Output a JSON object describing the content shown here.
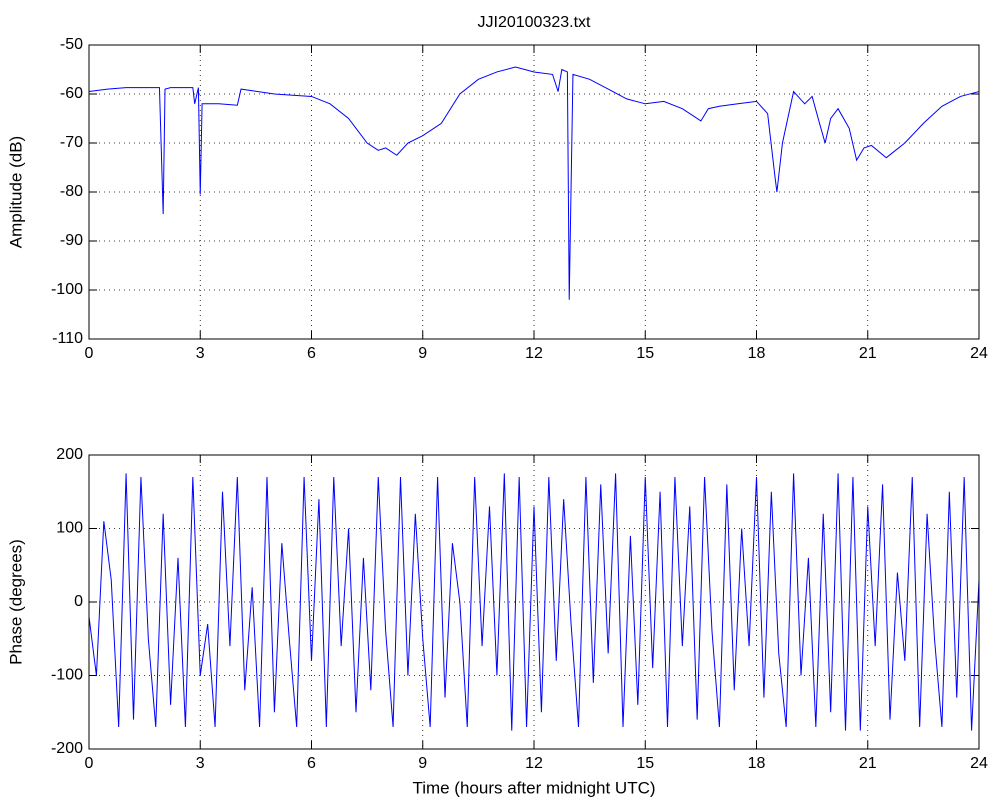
{
  "chart_data": [
    {
      "type": "line",
      "title": "JJI20100323.txt",
      "ylabel": "Amplitude (dB)",
      "xlim": [
        0,
        24
      ],
      "xticks": [
        0,
        3,
        6,
        9,
        12,
        15,
        18,
        21,
        24
      ],
      "ylim": [
        -110,
        -50
      ],
      "yticks": [
        -110,
        -100,
        -90,
        -80,
        -70,
        -60,
        -50
      ],
      "grid": true,
      "series": [
        {
          "color": "#0000ff",
          "x": [
            0,
            0.5,
            1,
            1.5,
            1.9,
            2.0,
            2.05,
            2.2,
            2.8,
            2.85,
            2.95,
            3.0,
            3.05,
            3.5,
            4.0,
            4.1,
            5,
            6,
            6.5,
            7,
            7.5,
            7.8,
            8.0,
            8.3,
            8.6,
            9,
            9.5,
            10,
            10.5,
            11,
            11.5,
            12,
            12.5,
            12.65,
            12.75,
            12.9,
            12.95,
            13.0,
            13.05,
            13.5,
            14,
            14.5,
            15,
            15.5,
            16,
            16.5,
            16.7,
            17,
            17.5,
            18,
            18.3,
            18.5,
            18.55,
            18.7,
            19,
            19.3,
            19.5,
            19.7,
            19.85,
            20,
            20.2,
            20.5,
            20.7,
            20.9,
            21.1,
            21.5,
            22,
            22.5,
            23,
            23.5,
            24
          ],
          "values": [
            -59.5,
            -59,
            -58.7,
            -58.7,
            -58.7,
            -84.5,
            -59,
            -58.7,
            -58.7,
            -62,
            -58.7,
            -80.5,
            -62,
            -62,
            -62.3,
            -59,
            -60,
            -60.5,
            -62,
            -65,
            -70,
            -71.5,
            -71,
            -72.5,
            -70,
            -68.5,
            -66,
            -60,
            -57,
            -55.5,
            -54.5,
            -55.5,
            -56,
            -59.5,
            -55,
            -55.5,
            -102,
            -79,
            -56,
            -57,
            -59,
            -61,
            -62,
            -61.5,
            -63,
            -65.5,
            -63,
            -62.5,
            -62,
            -61.5,
            -64,
            -77,
            -80,
            -70,
            -59.5,
            -62,
            -60.5,
            -66,
            -70,
            -65,
            -63,
            -67,
            -73.5,
            -71,
            -70.5,
            -73,
            -70,
            -66,
            -62.5,
            -60.5,
            -59.5
          ]
        }
      ]
    },
    {
      "type": "line",
      "xlabel": "Time (hours after midnight UTC)",
      "ylabel": "Phase (degrees)",
      "xlim": [
        0,
        24
      ],
      "xticks": [
        0,
        3,
        6,
        9,
        12,
        15,
        18,
        21,
        24
      ],
      "ylim": [
        -200,
        200
      ],
      "yticks": [
        -200,
        -100,
        0,
        100,
        200
      ],
      "grid": true,
      "series": [
        {
          "color": "#0000ff",
          "x": [
            0,
            0.2,
            0.4,
            0.6,
            0.8,
            1,
            1.2,
            1.4,
            1.6,
            1.8,
            2,
            2.2,
            2.4,
            2.6,
            2.8,
            3,
            3.2,
            3.4,
            3.6,
            3.8,
            4,
            4.2,
            4.4,
            4.6,
            4.8,
            5,
            5.2,
            5.4,
            5.6,
            5.8,
            6,
            6.2,
            6.4,
            6.6,
            6.8,
            7,
            7.2,
            7.4,
            7.6,
            7.8,
            8,
            8.2,
            8.4,
            8.6,
            8.8,
            9,
            9.2,
            9.4,
            9.6,
            9.8,
            10,
            10.2,
            10.4,
            10.6,
            10.8,
            11,
            11.2,
            11.4,
            11.6,
            11.8,
            12,
            12.2,
            12.4,
            12.6,
            12.8,
            13,
            13.2,
            13.4,
            13.6,
            13.8,
            14,
            14.2,
            14.4,
            14.6,
            14.8,
            15,
            15.2,
            15.4,
            15.6,
            15.8,
            16,
            16.2,
            16.4,
            16.6,
            16.8,
            17,
            17.2,
            17.4,
            17.6,
            17.8,
            18,
            18.2,
            18.4,
            18.6,
            18.8,
            19,
            19.2,
            19.4,
            19.6,
            19.8,
            20,
            20.2,
            20.4,
            20.6,
            20.8,
            21,
            21.2,
            21.4,
            21.6,
            21.8,
            22,
            22.2,
            22.4,
            22.6,
            22.8,
            23,
            23.2,
            23.4,
            23.6,
            23.8,
            24
          ],
          "values": [
            -20,
            -100,
            110,
            30,
            -170,
            175,
            -160,
            170,
            -50,
            -170,
            120,
            -140,
            60,
            -170,
            170,
            -100,
            -30,
            -170,
            150,
            -60,
            170,
            -120,
            20,
            -170,
            170,
            -150,
            80,
            -50,
            -170,
            170,
            -80,
            140,
            -170,
            170,
            -60,
            100,
            -150,
            60,
            -120,
            170,
            -40,
            -170,
            170,
            -100,
            120,
            -50,
            -170,
            170,
            -130,
            80,
            0,
            -170,
            170,
            -60,
            130,
            -100,
            175,
            -175,
            170,
            -170,
            130,
            -150,
            170,
            -80,
            140,
            -30,
            -170,
            170,
            -110,
            160,
            -70,
            175,
            -170,
            90,
            -140,
            170,
            -90,
            150,
            -170,
            170,
            -60,
            130,
            -160,
            170,
            -40,
            -170,
            160,
            -120,
            100,
            -60,
            170,
            -130,
            150,
            -70,
            -170,
            175,
            -100,
            60,
            -170,
            120,
            -150,
            175,
            -175,
            170,
            -175,
            130,
            -60,
            160,
            -160,
            40,
            -80,
            170,
            -170,
            120,
            -50,
            -170,
            150,
            -130,
            170,
            -175,
            30
          ]
        }
      ]
    }
  ]
}
